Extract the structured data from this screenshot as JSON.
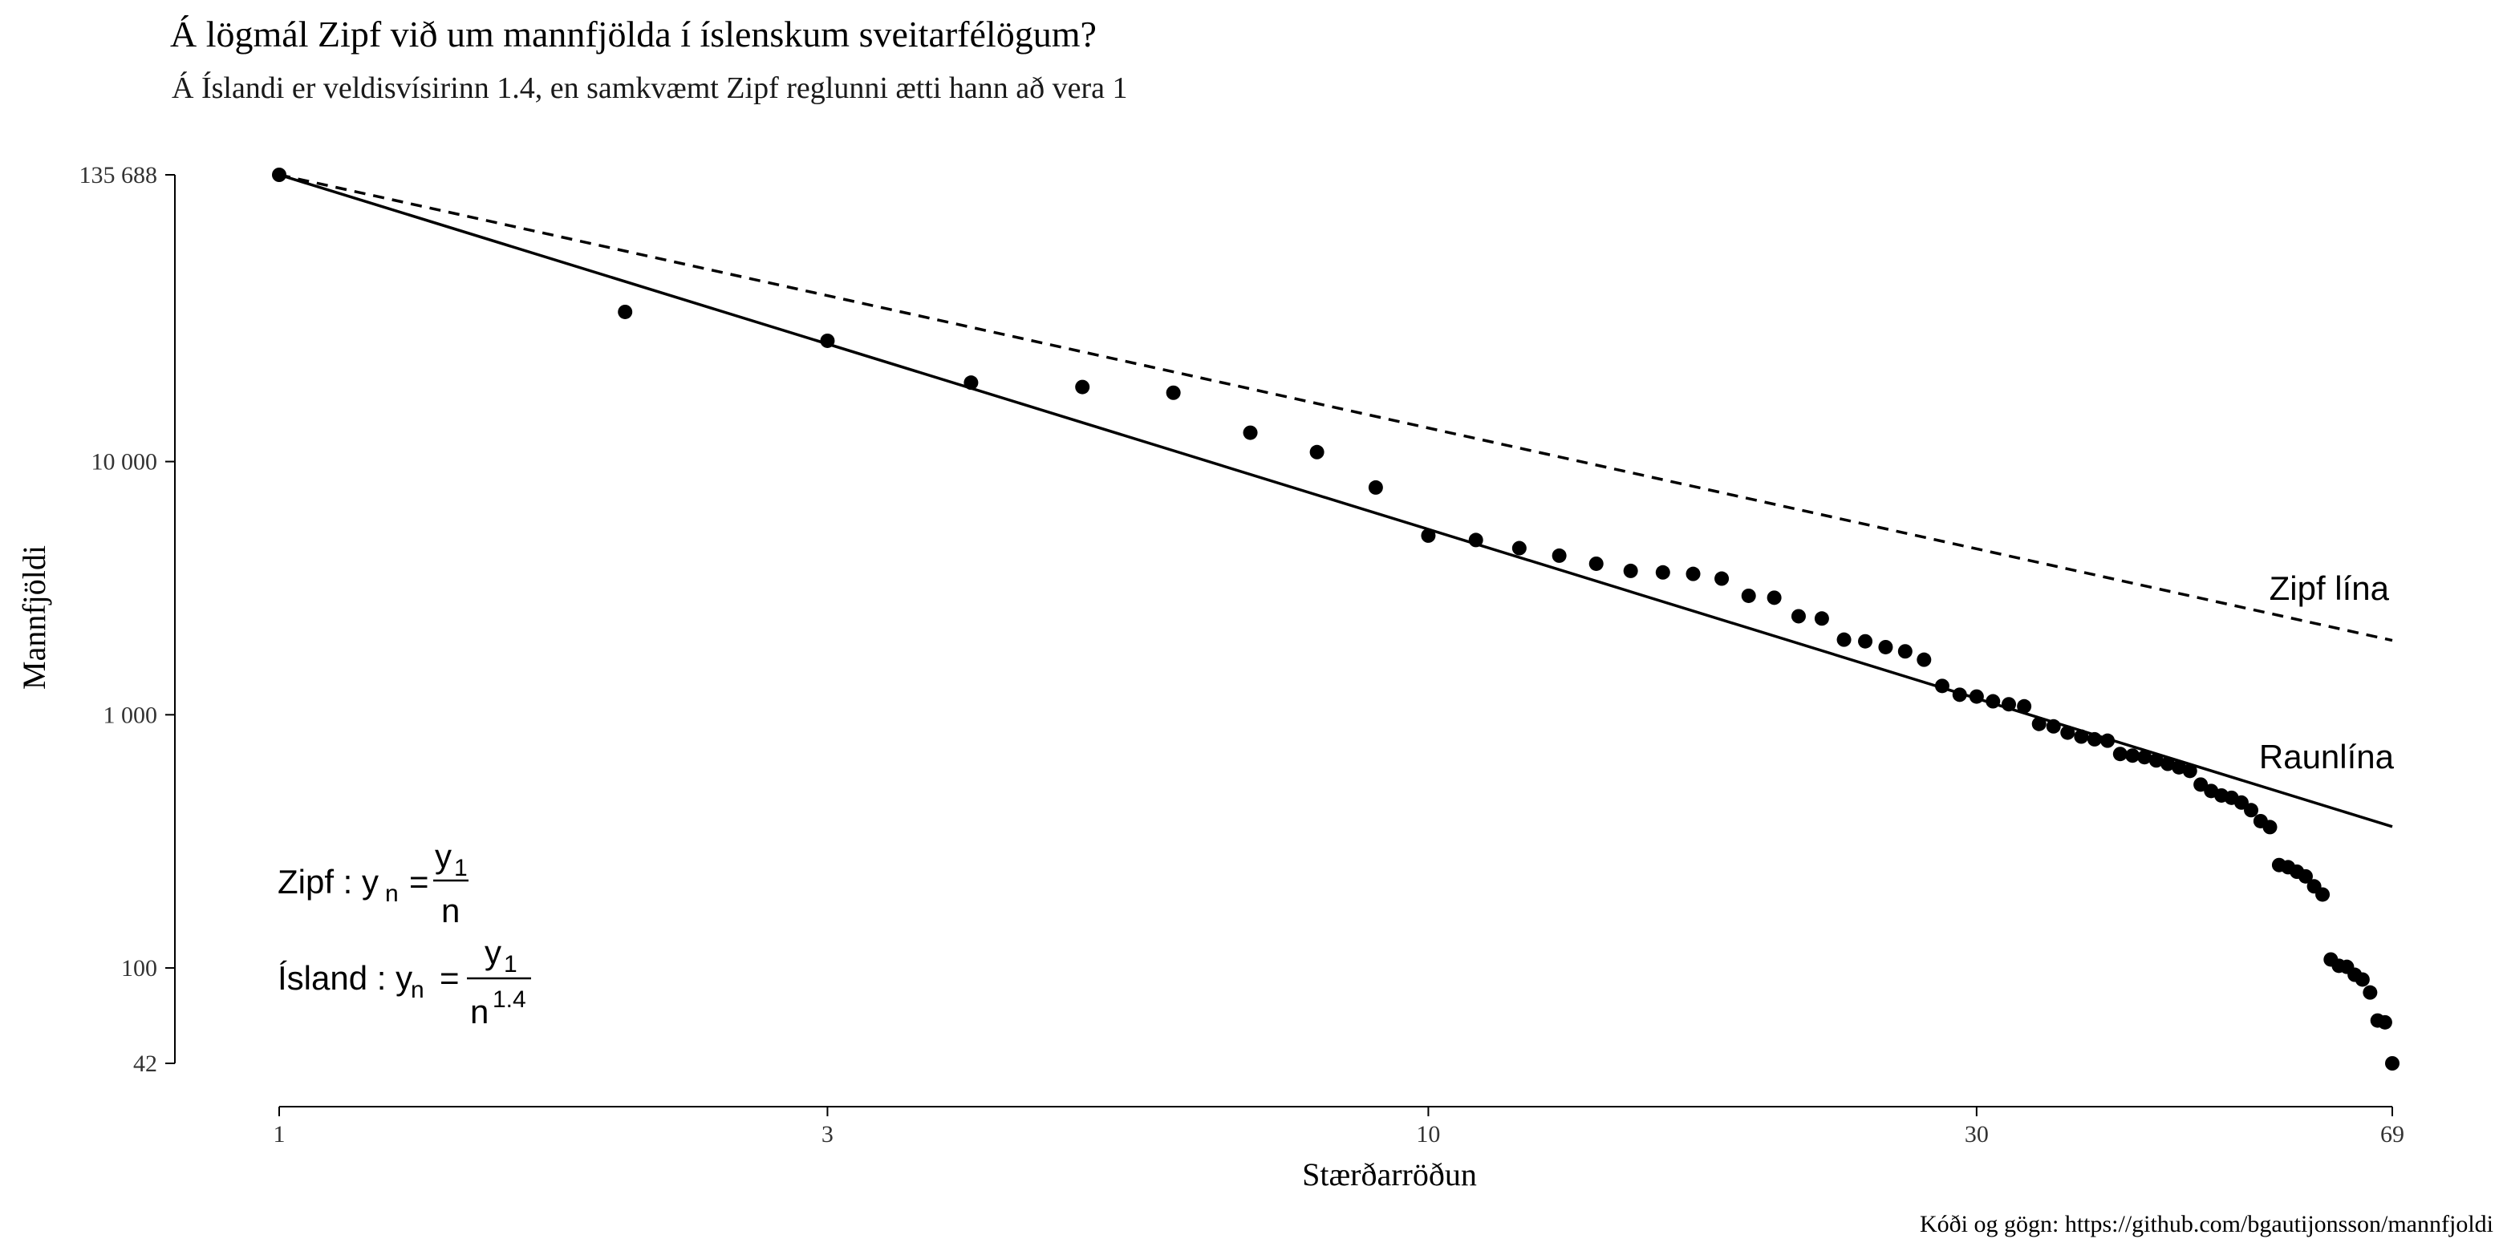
{
  "chart_data": {
    "type": "scatter",
    "title": "Á lögmál Zipf við um mannfjölda í íslenskum sveitarfélögum?",
    "subtitle": "Á Íslandi er veldisvísirinn 1.4, en samkvæmt Zipf reglunni ætti hann að vera 1",
    "xlabel": "Stærðarröðun",
    "ylabel": "Mannfjöldi",
    "caption": "Kóði og gögn: https://github.com/bgautijonsson/mannfjoldi",
    "x_scale": "log",
    "y_scale": "log",
    "xlim": [
      1,
      69
    ],
    "ylim": [
      42,
      135688
    ],
    "x_ticks": [
      1,
      3,
      10,
      30,
      69
    ],
    "x_tick_labels": [
      "1",
      "3",
      "10",
      "30",
      "69"
    ],
    "y_ticks": [
      42,
      100,
      1000,
      10000,
      135688
    ],
    "y_tick_labels": [
      "42",
      "100",
      "1 000",
      "10 000",
      "135 688"
    ],
    "grid": false,
    "legend": "none",
    "points": [
      [
        1,
        135688
      ],
      [
        2,
        39000
      ],
      [
        3,
        30000
      ],
      [
        4,
        20500
      ],
      [
        5,
        19700
      ],
      [
        6,
        18700
      ],
      [
        7,
        13000
      ],
      [
        8,
        10900
      ],
      [
        9,
        7900
      ],
      [
        10,
        5100
      ],
      [
        11,
        4900
      ],
      [
        12,
        4550
      ],
      [
        13,
        4250
      ],
      [
        14,
        3950
      ],
      [
        15,
        3700
      ],
      [
        16,
        3650
      ],
      [
        17,
        3600
      ],
      [
        18,
        3450
      ],
      [
        19,
        2950
      ],
      [
        20,
        2900
      ],
      [
        21,
        2450
      ],
      [
        22,
        2400
      ],
      [
        23,
        1980
      ],
      [
        24,
        1950
      ],
      [
        25,
        1850
      ],
      [
        26,
        1780
      ],
      [
        27,
        1650
      ],
      [
        28,
        1300
      ],
      [
        29,
        1200
      ],
      [
        30,
        1180
      ],
      [
        31,
        1130
      ],
      [
        32,
        1100
      ],
      [
        33,
        1080
      ],
      [
        34,
        920
      ],
      [
        35,
        900
      ],
      [
        36,
        850
      ],
      [
        37,
        820
      ],
      [
        38,
        800
      ],
      [
        39,
        790
      ],
      [
        40,
        700
      ],
      [
        41,
        690
      ],
      [
        42,
        680
      ],
      [
        43,
        660
      ],
      [
        44,
        640
      ],
      [
        45,
        620
      ],
      [
        46,
        600
      ],
      [
        47,
        530
      ],
      [
        48,
        500
      ],
      [
        49,
        480
      ],
      [
        50,
        470
      ],
      [
        51,
        450
      ],
      [
        52,
        420
      ],
      [
        53,
        380
      ],
      [
        54,
        360
      ],
      [
        55,
        255
      ],
      [
        56,
        250
      ],
      [
        57,
        240
      ],
      [
        58,
        230
      ],
      [
        59,
        210
      ],
      [
        60,
        195
      ],
      [
        61,
        108
      ],
      [
        62,
        102
      ],
      [
        63,
        101
      ],
      [
        64,
        94
      ],
      [
        65,
        90
      ],
      [
        66,
        80
      ],
      [
        67,
        62
      ],
      [
        68,
        61
      ],
      [
        69,
        42
      ]
    ],
    "lines": [
      {
        "name": "Zipf lína",
        "style": "dashed",
        "y1": 135688,
        "exponent": 1
      },
      {
        "name": "Raunlína",
        "style": "solid",
        "y1": 135688,
        "exponent": 1.4
      }
    ],
    "annotations": {
      "zipf_lhs": "Zipf : y",
      "island_lhs": "Ísland : y",
      "sub_n": "n",
      "eq": "=",
      "num": "y",
      "sub_1": "1",
      "den_n": "n",
      "exp": "1.4"
    }
  }
}
